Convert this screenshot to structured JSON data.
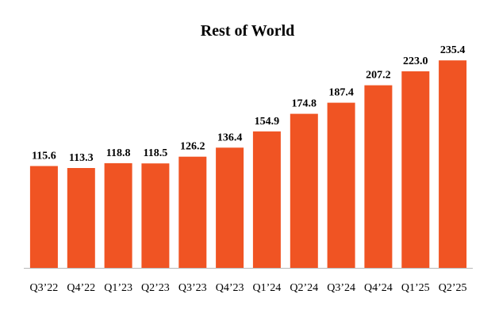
{
  "chart_data": {
    "type": "bar",
    "title": "Rest of World",
    "xlabel": "",
    "ylabel": "",
    "categories": [
      "Q3’22",
      "Q4’22",
      "Q1’23",
      "Q2’23",
      "Q3’23",
      "Q4’23",
      "Q1’24",
      "Q2’24",
      "Q3’24",
      "Q4’24",
      "Q1’25",
      "Q2’25"
    ],
    "values": [
      115.6,
      113.3,
      118.8,
      118.5,
      126.2,
      136.4,
      154.9,
      174.8,
      187.4,
      207.2,
      223.0,
      235.4
    ],
    "value_labels": [
      "115.6",
      "113.3",
      "118.8",
      "118.5",
      "126.2",
      "136.4",
      "154.9",
      "174.8",
      "187.4",
      "207.2",
      "223.0",
      "235.4"
    ],
    "ylim": [
      0,
      250
    ],
    "grid": false,
    "legend": "none",
    "colors": {
      "bar": "#F05423",
      "axis": "#b8b8b8",
      "text": "#000000"
    }
  }
}
